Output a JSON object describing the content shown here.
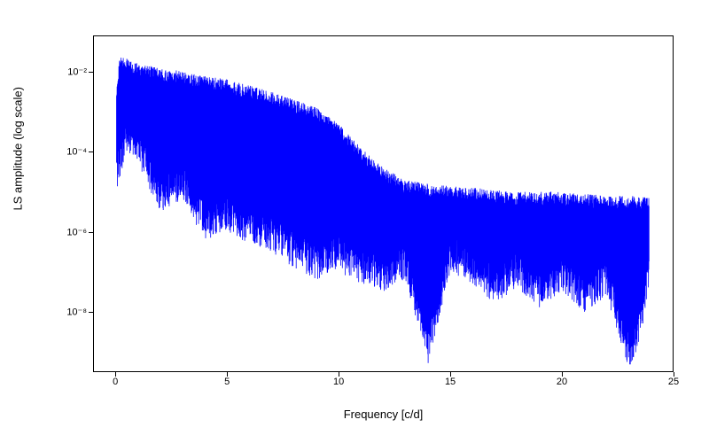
{
  "chart": {
    "type": "line-spectrum",
    "xlabel": "Frequency [c/d]",
    "ylabel": "LS amplitude (log scale)",
    "xlim": [
      -1,
      25
    ],
    "ylim_log10": [
      -9.5,
      -1.1
    ],
    "xticks": [
      0,
      5,
      10,
      15,
      20,
      25
    ],
    "yticks_exp": [
      -8,
      -6,
      -4,
      -2
    ],
    "ytick_labels": [
      "10⁻⁸",
      "10⁻⁶",
      "10⁻⁴",
      "10⁻²"
    ],
    "background_color": "#ffffff",
    "line_color": "#0000ff",
    "axis_color": "#000000",
    "label_fontsize": 13,
    "tick_fontsize": 11,
    "line_width": 0.8,
    "spectrum": {
      "freq_start": 0.05,
      "freq_end": 23.9,
      "n_points": 1800,
      "envelope_top_log10": [
        [
          0.05,
          -2.3
        ],
        [
          0.2,
          -1.6
        ],
        [
          1,
          -1.8
        ],
        [
          3,
          -2.0
        ],
        [
          5,
          -2.2
        ],
        [
          7,
          -2.5
        ],
        [
          9,
          -2.9
        ],
        [
          10,
          -3.3
        ],
        [
          11,
          -3.9
        ],
        [
          12,
          -4.4
        ],
        [
          13,
          -4.7
        ],
        [
          14,
          -4.8
        ],
        [
          16,
          -4.9
        ],
        [
          18,
          -5.0
        ],
        [
          20,
          -5.0
        ],
        [
          22,
          -5.1
        ],
        [
          23.9,
          -5.1
        ]
      ],
      "envelope_bot_log10": [
        [
          0.05,
          -5.0
        ],
        [
          0.5,
          -4.0
        ],
        [
          1,
          -4.3
        ],
        [
          2,
          -5.5
        ],
        [
          3,
          -5.2
        ],
        [
          4,
          -6.2
        ],
        [
          5,
          -6.0
        ],
        [
          6,
          -6.3
        ],
        [
          7,
          -6.5
        ],
        [
          8,
          -6.9
        ],
        [
          9,
          -7.2
        ],
        [
          10,
          -7.0
        ],
        [
          11,
          -7.3
        ],
        [
          12,
          -7.5
        ],
        [
          13,
          -7.2
        ],
        [
          14,
          -9.3
        ],
        [
          15,
          -7.0
        ],
        [
          16,
          -7.3
        ],
        [
          17,
          -7.8
        ],
        [
          18,
          -7.4
        ],
        [
          19,
          -7.9
        ],
        [
          20,
          -7.5
        ],
        [
          21,
          -8.0
        ],
        [
          22,
          -7.6
        ],
        [
          23,
          -9.4
        ],
        [
          23.5,
          -8.8
        ],
        [
          23.9,
          -7.3
        ]
      ]
    }
  }
}
